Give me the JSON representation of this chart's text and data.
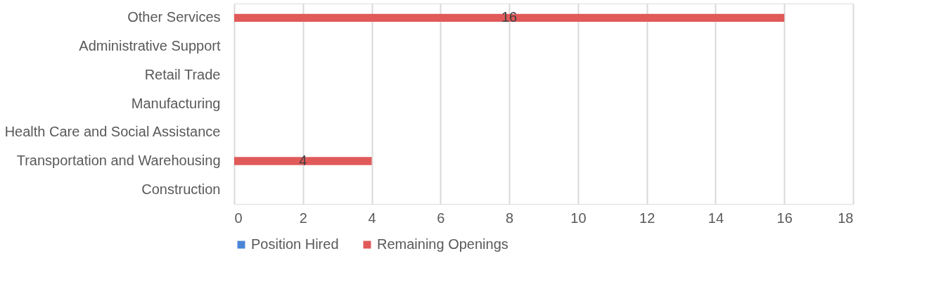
{
  "chart_data": {
    "type": "bar",
    "orientation": "horizontal",
    "stacked": true,
    "categories": [
      "Other Services",
      "Administrative Support",
      "Retail Trade",
      "Manufacturing",
      "Health Care and Social Assistance",
      "Transportation and Warehousing",
      "Construction"
    ],
    "series": [
      {
        "name": "Position Hired",
        "color": "#4a86d8",
        "values": [
          null,
          null,
          null,
          null,
          null,
          null,
          null
        ]
      },
      {
        "name": "Remaining Openings",
        "color": "#e05a5a",
        "values": [
          16,
          null,
          null,
          null,
          null,
          4,
          null
        ],
        "value_labels": [
          "16",
          null,
          null,
          null,
          null,
          "4",
          null
        ]
      }
    ],
    "xlim": [
      0,
      18
    ],
    "xticks": [
      0,
      2,
      4,
      6,
      8,
      10,
      12,
      14,
      16,
      18
    ],
    "grid": "x",
    "legend": "bottom"
  }
}
